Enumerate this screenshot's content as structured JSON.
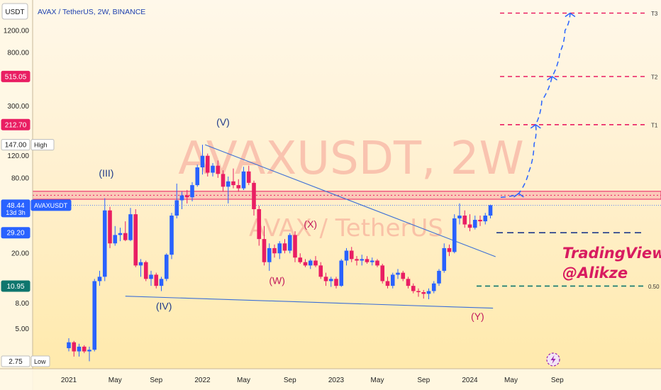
{
  "header": {
    "currency": "USDT",
    "title": "AVAX / TetherUS, 2W, BINANCE"
  },
  "watermark": {
    "symbol": "AVAXUSDT, 2W",
    "name": "AVAX / TetherUS"
  },
  "branding": {
    "line1": "TradingView",
    "line2": "@Alikze"
  },
  "colors": {
    "up": "#2962ff",
    "down": "#e91e63",
    "target": "#e91e63",
    "support": "#1e3a8a",
    "green": "#0f766e"
  },
  "icons": [
    "lightning-icon"
  ],
  "price_labels": [
    {
      "text": "515.05",
      "value": 515.05,
      "bg": "#e91e63",
      "fg": "#ffffff"
    },
    {
      "text": "212.70",
      "value": 212.7,
      "bg": "#e91e63",
      "fg": "#ffffff"
    },
    {
      "text": "147.00",
      "value": 147.0,
      "bg": "#ffffff",
      "fg": "#222222",
      "tag": "High"
    },
    {
      "text": "48.44",
      "value": 48.44,
      "bg": "#2962ff",
      "fg": "#ffffff",
      "tag": "AVAXUSDT",
      "sub": "13d 3h"
    },
    {
      "text": "29.20",
      "value": 29.2,
      "bg": "#2962ff",
      "fg": "#ffffff"
    },
    {
      "text": "10.95",
      "value": 10.95,
      "bg": "#0f766e",
      "fg": "#ffffff"
    },
    {
      "text": "2.75",
      "value": 2.75,
      "bg": "#ffffff",
      "fg": "#222222",
      "tag": "Low"
    }
  ],
  "chart_data": {
    "type": "candlestick",
    "title": "AVAX / TetherUS, 2W, BINANCE",
    "y_scale": "log",
    "ylim": [
      2.4,
      2100
    ],
    "y_ticks": [
      {
        "v": 1200,
        "label": "1200.00"
      },
      {
        "v": 800,
        "label": "800.00"
      },
      {
        "v": 300,
        "label": "300.00"
      },
      {
        "v": 120,
        "label": "120.00"
      },
      {
        "v": 80,
        "label": "80.00"
      },
      {
        "v": 20,
        "label": "20.00"
      },
      {
        "v": 8,
        "label": "8.00"
      },
      {
        "v": 5,
        "label": "5.00"
      }
    ],
    "x_ticks": [
      {
        "t": 0,
        "label": "2021"
      },
      {
        "t": 9,
        "label": "May"
      },
      {
        "t": 17,
        "label": "Sep"
      },
      {
        "t": 26,
        "label": "2022"
      },
      {
        "t": 34,
        "label": "May"
      },
      {
        "t": 43,
        "label": "Sep"
      },
      {
        "t": 52,
        "label": "2023"
      },
      {
        "t": 60,
        "label": "May"
      },
      {
        "t": 69,
        "label": "Sep"
      },
      {
        "t": 78,
        "label": "2024"
      },
      {
        "t": 86,
        "label": "May"
      },
      {
        "t": 95,
        "label": "Sep"
      }
    ],
    "candles": [
      [
        3.5,
        4.2,
        3.3,
        3.9
      ],
      [
        3.9,
        4.0,
        3.0,
        3.3
      ],
      [
        3.3,
        3.8,
        3.0,
        3.6
      ],
      [
        3.6,
        3.7,
        3.2,
        3.3
      ],
      [
        3.3,
        3.6,
        2.75,
        3.4
      ],
      [
        3.4,
        12.5,
        3.3,
        12.0
      ],
      [
        12.0,
        14.5,
        11.0,
        13.0
      ],
      [
        13.0,
        55.0,
        12.0,
        44.0
      ],
      [
        44.0,
        47.0,
        22.0,
        24.0
      ],
      [
        24.0,
        33.0,
        23.0,
        28.0
      ],
      [
        28.0,
        32.0,
        25.0,
        29.0
      ],
      [
        29.0,
        36.0,
        25.0,
        25.5
      ],
      [
        25.5,
        46.0,
        25.0,
        41.0
      ],
      [
        41.0,
        45.0,
        15.5,
        16.0
      ],
      [
        16.0,
        18.0,
        13.0,
        17.0
      ],
      [
        17.0,
        17.5,
        12.0,
        12.5
      ],
      [
        12.5,
        14.5,
        11.0,
        13.5
      ],
      [
        13.5,
        14.0,
        10.5,
        11.0
      ],
      [
        11.0,
        13.0,
        10.0,
        12.5
      ],
      [
        12.5,
        20.0,
        12.0,
        19.5
      ],
      [
        19.5,
        42.0,
        18.0,
        40.0
      ],
      [
        40.0,
        72.0,
        38.0,
        53.0
      ],
      [
        53.0,
        62.0,
        45.0,
        58.0
      ],
      [
        58.0,
        64.0,
        50.0,
        56.0
      ],
      [
        56.0,
        74.0,
        52.0,
        70.0
      ],
      [
        70.0,
        102.0,
        68.0,
        97.0
      ],
      [
        97.0,
        147.0,
        85.0,
        120.0
      ],
      [
        120.0,
        125.0,
        82.0,
        88.0
      ],
      [
        88.0,
        105.0,
        82.0,
        100.0
      ],
      [
        100.0,
        110.0,
        80.0,
        86.0
      ],
      [
        86.0,
        92.0,
        62.0,
        68.0
      ],
      [
        68.0,
        82.0,
        50.0,
        75.0
      ],
      [
        75.0,
        95.0,
        66.0,
        70.0
      ],
      [
        70.0,
        78.0,
        62.0,
        66.0
      ],
      [
        66.0,
        98.0,
        64.0,
        90.0
      ],
      [
        90.0,
        100.0,
        70.0,
        73.0
      ],
      [
        73.0,
        76.0,
        40.0,
        45.0
      ],
      [
        45.0,
        48.0,
        23.0,
        26.0
      ],
      [
        26.0,
        33.0,
        16.0,
        17.0
      ],
      [
        17.0,
        24.0,
        14.5,
        22.0
      ],
      [
        22.0,
        23.5,
        18.5,
        20.0
      ],
      [
        20.0,
        25.0,
        18.0,
        24.0
      ],
      [
        24.0,
        26.0,
        20.0,
        21.0
      ],
      [
        21.0,
        29.0,
        20.0,
        28.0
      ],
      [
        28.0,
        30.0,
        17.0,
        18.5
      ],
      [
        18.5,
        20.0,
        16.5,
        17.0
      ],
      [
        17.0,
        18.0,
        15.5,
        16.0
      ],
      [
        16.0,
        18.0,
        15.0,
        17.5
      ],
      [
        17.5,
        19.0,
        15.5,
        16.0
      ],
      [
        16.0,
        17.0,
        12.5,
        13.0
      ],
      [
        13.0,
        14.0,
        11.0,
        12.0
      ],
      [
        12.0,
        13.0,
        10.8,
        12.5
      ],
      [
        12.5,
        13.0,
        10.5,
        11.0
      ],
      [
        11.0,
        18.0,
        10.8,
        17.5
      ],
      [
        17.5,
        22.0,
        16.0,
        21.0
      ],
      [
        21.0,
        22.5,
        17.0,
        18.0
      ],
      [
        18.0,
        19.0,
        16.0,
        17.5
      ],
      [
        17.5,
        19.5,
        16.0,
        18.0
      ],
      [
        18.0,
        19.0,
        16.5,
        17.0
      ],
      [
        17.0,
        18.5,
        16.0,
        17.5
      ],
      [
        17.5,
        18.0,
        15.5,
        16.0
      ],
      [
        16.0,
        16.5,
        11.5,
        12.0
      ],
      [
        12.0,
        13.0,
        10.5,
        11.0
      ],
      [
        11.0,
        14.0,
        10.5,
        13.5
      ],
      [
        13.5,
        15.0,
        12.5,
        14.0
      ],
      [
        14.0,
        14.5,
        12.0,
        12.5
      ],
      [
        12.5,
        13.0,
        10.5,
        11.0
      ],
      [
        11.0,
        11.5,
        9.6,
        10.0
      ],
      [
        10.0,
        10.5,
        9.0,
        9.8
      ],
      [
        9.8,
        10.2,
        8.7,
        9.5
      ],
      [
        9.5,
        10.5,
        8.6,
        10.0
      ],
      [
        10.0,
        12.0,
        9.6,
        11.5
      ],
      [
        11.5,
        15.0,
        11.0,
        14.5
      ],
      [
        14.5,
        24.0,
        14.0,
        22.0
      ],
      [
        22.0,
        23.5,
        19.0,
        20.5
      ],
      [
        20.5,
        41.0,
        20.0,
        38.0
      ],
      [
        38.0,
        50.0,
        34.0,
        40.0
      ],
      [
        40.0,
        44.0,
        32.0,
        34.0
      ],
      [
        34.0,
        41.0,
        30.0,
        32.0
      ],
      [
        32.0,
        40.0,
        31.0,
        37.0
      ],
      [
        37.0,
        40.0,
        33.0,
        36.0
      ],
      [
        36.0,
        42.0,
        34.0,
        40.0
      ],
      [
        40.0,
        49.0,
        38.0,
        48.44
      ]
    ],
    "resistance_zone": [
      54.0,
      62.5
    ],
    "resistance_line": 48.44,
    "levels": [
      {
        "name": "T3",
        "value": 1650
      },
      {
        "name": "T2",
        "value": 515.05
      },
      {
        "name": "T1",
        "value": 212.7
      },
      {
        "name": "",
        "value": 29.2
      },
      {
        "name": "0.50",
        "value": 10.95
      }
    ],
    "trendlines": [
      {
        "from": [
          26.5,
          147
        ],
        "to": [
          83.0,
          18.8
        ]
      },
      {
        "from": [
          11.0,
          9.1
        ],
        "to": [
          82.5,
          7.3
        ]
      }
    ],
    "projection": [
      [
        84.0,
        56
      ],
      [
        87.5,
        60
      ],
      [
        89.5,
        90
      ],
      [
        90.5,
        150
      ],
      [
        90.8,
        212.7
      ],
      [
        92.0,
        330
      ],
      [
        94.0,
        515.05
      ],
      [
        95.5,
        800
      ],
      [
        96.5,
        1200
      ],
      [
        97.5,
        1650
      ]
    ],
    "wave_labels": [
      {
        "text": "(III)",
        "t": 7.3,
        "v": 82
      },
      {
        "text": "(IV)",
        "t": 18.5,
        "v": 7.1
      },
      {
        "text": "(V)",
        "t": 30.0,
        "v": 210
      },
      {
        "text": "(W)",
        "t": 40.5,
        "v": 11.4
      },
      {
        "text": "(X)",
        "t": 47.0,
        "v": 32
      },
      {
        "text": "(Y)",
        "t": 79.5,
        "v": 5.9
      }
    ]
  }
}
